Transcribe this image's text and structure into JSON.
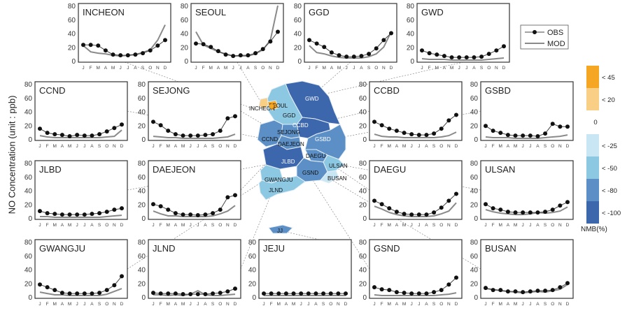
{
  "figure": {
    "ylabel": "NO Concentration (unit : ppb)",
    "legend": {
      "obs_label": "OBS",
      "mod_label": "MOD"
    },
    "colorbar": {
      "title": "NMB(%)",
      "zero_label": "0",
      "bins": [
        {
          "label": "< 45",
          "color": "#f5a623"
        },
        {
          "label": "< 20",
          "color": "#f9cf86"
        },
        {
          "label": "< -25",
          "color": "#c8e6f4"
        },
        {
          "label": "< -50",
          "color": "#8dc8e3"
        },
        {
          "label": "< -80",
          "color": "#5b8fc6"
        },
        {
          "label": "< -100",
          "color": "#3d67ad"
        }
      ]
    }
  },
  "chart_data": {
    "type": "line",
    "ylim": [
      0,
      80
    ],
    "yticks": [
      0,
      20,
      40,
      60,
      80
    ],
    "months": [
      "J",
      "F",
      "M",
      "A",
      "M",
      "J",
      "J",
      "A",
      "S",
      "O",
      "N",
      "D"
    ],
    "panels": [
      {
        "name": "INCHEON",
        "obs": [
          23,
          23,
          22,
          15,
          9,
          8,
          8,
          9,
          11,
          15,
          22,
          30
        ],
        "mod": [
          22,
          13,
          11,
          10,
          8,
          7,
          8,
          9,
          12,
          16,
          30,
          52
        ]
      },
      {
        "name": "SEOUL",
        "obs": [
          25,
          24,
          20,
          14,
          9,
          7,
          8,
          8,
          11,
          17,
          28,
          42
        ],
        "mod": [
          42,
          23,
          18,
          13,
          10,
          7,
          7,
          7,
          10,
          16,
          30,
          80
        ]
      },
      {
        "name": "GGD",
        "obs": [
          30,
          25,
          20,
          12,
          8,
          6,
          6,
          7,
          10,
          18,
          30,
          40
        ],
        "mod": [
          22,
          12,
          10,
          7,
          5,
          4,
          4,
          4,
          6,
          10,
          20,
          42
        ]
      },
      {
        "name": "GWD",
        "obs": [
          15,
          11,
          9,
          7,
          5,
          5,
          5,
          5,
          6,
          10,
          15,
          21
        ],
        "mod": [
          3,
          2,
          2,
          2,
          1,
          1,
          1,
          1,
          1,
          2,
          3,
          4
        ]
      },
      {
        "name": "CCND",
        "obs": [
          15,
          9,
          7,
          6,
          4,
          6,
          5,
          5,
          7,
          11,
          16,
          21
        ],
        "mod": [
          5,
          3,
          2,
          2,
          2,
          2,
          2,
          2,
          2,
          3,
          4,
          13
        ]
      },
      {
        "name": "SEJONG",
        "obs": [
          25,
          20,
          12,
          7,
          5,
          5,
          5,
          6,
          7,
          12,
          30,
          33
        ],
        "mod": [
          4,
          3,
          2,
          2,
          1,
          1,
          1,
          1,
          1,
          2,
          3,
          7
        ]
      },
      {
        "name": "CCBD",
        "obs": [
          25,
          20,
          15,
          12,
          9,
          7,
          6,
          6,
          8,
          15,
          27,
          35
        ],
        "mod": [
          7,
          4,
          3,
          3,
          2,
          2,
          2,
          2,
          2,
          3,
          5,
          10
        ]
      },
      {
        "name": "GSBD",
        "obs": [
          19,
          12,
          9,
          6,
          5,
          5,
          5,
          4,
          8,
          22,
          18,
          18
        ],
        "mod": [
          3,
          2,
          2,
          2,
          1,
          1,
          1,
          1,
          2,
          3,
          4,
          6
        ]
      },
      {
        "name": "JLBD",
        "obs": [
          10,
          7,
          6,
          5,
          5,
          5,
          5,
          6,
          7,
          9,
          12,
          14
        ],
        "mod": [
          2,
          2,
          1,
          1,
          1,
          1,
          1,
          1,
          1,
          2,
          3,
          4
        ]
      },
      {
        "name": "DAEJEON",
        "obs": [
          20,
          17,
          12,
          7,
          5,
          5,
          4,
          5,
          7,
          12,
          30,
          33
        ],
        "mod": [
          10,
          6,
          3,
          3,
          2,
          2,
          2,
          2,
          3,
          6,
          10,
          18
        ]
      },
      {
        "name": "DAEGU",
        "obs": [
          25,
          20,
          14,
          9,
          6,
          5,
          5,
          5,
          8,
          15,
          25,
          35
        ],
        "mod": [
          17,
          13,
          8,
          5,
          3,
          2,
          2,
          2,
          3,
          6,
          10,
          22
        ]
      },
      {
        "name": "ULSAN",
        "obs": [
          20,
          14,
          12,
          9,
          8,
          8,
          8,
          8,
          9,
          12,
          18,
          23
        ],
        "mod": [
          12,
          9,
          7,
          6,
          5,
          5,
          6,
          8,
          7,
          8,
          10,
          16
        ]
      },
      {
        "name": "GWANGJU",
        "obs": [
          18,
          14,
          10,
          6,
          5,
          5,
          5,
          5,
          6,
          10,
          17,
          30
        ],
        "mod": [
          7,
          5,
          3,
          3,
          2,
          2,
          2,
          2,
          2,
          4,
          8,
          12
        ]
      },
      {
        "name": "JLND",
        "obs": [
          6,
          5,
          5,
          5,
          4,
          4,
          4,
          4,
          5,
          6,
          8,
          12
        ],
        "mod": [
          3,
          3,
          2,
          3,
          2,
          4,
          9,
          3,
          2,
          2,
          3,
          4
        ]
      },
      {
        "name": "JEJU",
        "obs": [
          5,
          5,
          5,
          5,
          5,
          5,
          5,
          5,
          5,
          5,
          5,
          5
        ],
        "mod": [
          2,
          2,
          2,
          2,
          2,
          2,
          2,
          2,
          2,
          2,
          2,
          2
        ]
      },
      {
        "name": "GSND",
        "obs": [
          14,
          11,
          10,
          7,
          6,
          5,
          5,
          5,
          7,
          10,
          18,
          28
        ],
        "mod": [
          3,
          2,
          2,
          2,
          2,
          2,
          2,
          2,
          2,
          3,
          4,
          6
        ]
      },
      {
        "name": "BUSAN",
        "obs": [
          13,
          10,
          10,
          8,
          8,
          7,
          8,
          9,
          9,
          10,
          14,
          20
        ],
        "mod": [
          12,
          11,
          9,
          8,
          7,
          6,
          7,
          8,
          7,
          9,
          11,
          18
        ]
      }
    ]
  },
  "map": {
    "regions": [
      {
        "name": "INCHEON",
        "color": "#f9cf86"
      },
      {
        "name": "SEOUL",
        "color": "#f5a623"
      },
      {
        "name": "GGD",
        "color": "#8dc8e3"
      },
      {
        "name": "GWD",
        "color": "#3d67ad"
      },
      {
        "name": "CCBD",
        "color": "#3d67ad"
      },
      {
        "name": "SEJONG",
        "color": "#5b8fc6"
      },
      {
        "name": "CCND",
        "color": "#5b8fc6"
      },
      {
        "name": "DAEJEON",
        "color": "#5b8fc6"
      },
      {
        "name": "GSBD",
        "color": "#5b8fc6"
      },
      {
        "name": "JLBD",
        "color": "#3d67ad"
      },
      {
        "name": "DAEGU",
        "color": "#5b8fc6"
      },
      {
        "name": "GSND",
        "color": "#5b8fc6"
      },
      {
        "name": "ULSAN",
        "color": "#8dc8e3"
      },
      {
        "name": "BUSAN",
        "color": "#c8e6f4"
      },
      {
        "name": "GWANGJU",
        "color": "#8dc8e3"
      },
      {
        "name": "JLND",
        "color": "#8dc8e3"
      },
      {
        "name": "JJ",
        "color": "#5b8fc6"
      }
    ]
  }
}
